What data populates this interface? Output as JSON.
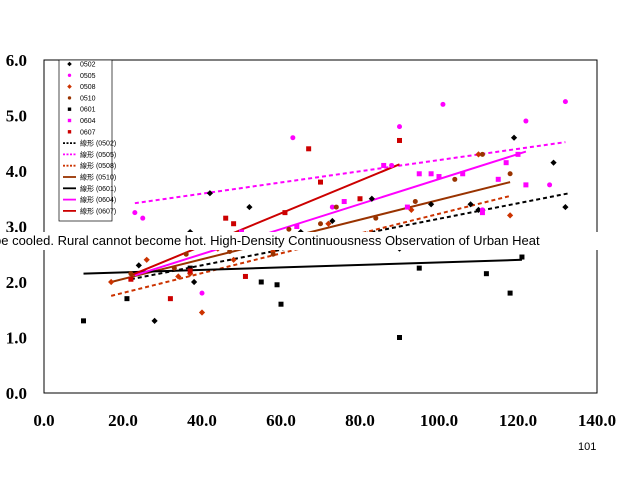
{
  "overlay_text": "be cooled. Rural cannot become hot. High-Density Continuousness Observation of Urban Heat",
  "slide_number": "101",
  "chart_data": {
    "type": "scatter",
    "title": "",
    "xlabel": "",
    "ylabel": "",
    "xlim": [
      0,
      140
    ],
    "ylim": [
      0,
      6
    ],
    "x_ticks": [
      "0.0",
      "20.0",
      "40.0",
      "60.0",
      "80.0",
      "100.0",
      "120.0",
      "140.0"
    ],
    "y_ticks": [
      "0.0",
      "1.0",
      "2.0",
      "3.0",
      "4.0",
      "5.0",
      "6.0"
    ],
    "grid": false,
    "legend": "top-left inside",
    "series": [
      {
        "name": "0502",
        "marker": "diamond",
        "color": "#000000",
        "points": [
          [
            10,
            2.7
          ],
          [
            15,
            2.8
          ],
          [
            24,
            2.3
          ],
          [
            28,
            1.3
          ],
          [
            37,
            2.9
          ],
          [
            38,
            2.0
          ],
          [
            42,
            3.6
          ],
          [
            52,
            3.35
          ],
          [
            65,
            2.9
          ],
          [
            73,
            3.1
          ],
          [
            83,
            3.5
          ],
          [
            90,
            2.6
          ],
          [
            98,
            3.4
          ],
          [
            108,
            3.4
          ],
          [
            110,
            3.3
          ],
          [
            119,
            4.6
          ],
          [
            126,
            2.7
          ],
          [
            128,
            2.65
          ],
          [
            129,
            4.15
          ],
          [
            132,
            3.35
          ]
        ]
      },
      {
        "name": "0505",
        "marker": "circle",
        "color": "#ff00ff",
        "points": [
          [
            23,
            3.25
          ],
          [
            25,
            3.15
          ],
          [
            40,
            1.8
          ],
          [
            63,
            4.6
          ],
          [
            73,
            3.35
          ],
          [
            88,
            4.1
          ],
          [
            90,
            4.8
          ],
          [
            101,
            5.2
          ],
          [
            111,
            3.3
          ],
          [
            122,
            4.9
          ],
          [
            128,
            3.75
          ],
          [
            132,
            5.25
          ]
        ]
      },
      {
        "name": "0508",
        "marker": "diamond",
        "color": "#cc3300",
        "points": [
          [
            17,
            2.0
          ],
          [
            26,
            2.4
          ],
          [
            34,
            2.1
          ],
          [
            37,
            2.15
          ],
          [
            40,
            1.45
          ],
          [
            44,
            2.6
          ],
          [
            48,
            2.4
          ],
          [
            58,
            2.55
          ],
          [
            72,
            3.05
          ],
          [
            85,
            2.85
          ],
          [
            93,
            3.3
          ],
          [
            110,
            4.3
          ],
          [
            118,
            3.2
          ]
        ]
      },
      {
        "name": "0510",
        "marker": "circle",
        "color": "#993300",
        "points": [
          [
            22,
            2.15
          ],
          [
            33,
            2.25
          ],
          [
            36,
            2.5
          ],
          [
            41,
            2.65
          ],
          [
            43,
            2.75
          ],
          [
            47,
            2.55
          ],
          [
            52,
            2.8
          ],
          [
            58,
            2.5
          ],
          [
            62,
            2.95
          ],
          [
            70,
            3.05
          ],
          [
            74,
            3.35
          ],
          [
            84,
            3.15
          ],
          [
            94,
            3.45
          ],
          [
            104,
            3.85
          ],
          [
            111,
            4.3
          ],
          [
            118,
            3.95
          ]
        ]
      },
      {
        "name": "0601",
        "marker": "square",
        "color": "#000000",
        "points": [
          [
            10,
            1.3
          ],
          [
            21,
            1.7
          ],
          [
            37,
            2.25
          ],
          [
            55,
            2.0
          ],
          [
            59,
            1.95
          ],
          [
            60,
            1.6
          ],
          [
            90,
            1.0
          ],
          [
            95,
            2.25
          ],
          [
            112,
            2.15
          ],
          [
            118,
            1.8
          ],
          [
            121,
            2.45
          ]
        ]
      },
      {
        "name": "0604",
        "marker": "square",
        "color": "#ff00ff",
        "points": [
          [
            31,
            2.65
          ],
          [
            38,
            2.7
          ],
          [
            45,
            2.75
          ],
          [
            50,
            2.9
          ],
          [
            64,
            3.0
          ],
          [
            76,
            3.45
          ],
          [
            86,
            4.1
          ],
          [
            92,
            3.35
          ],
          [
            95,
            3.95
          ],
          [
            98,
            3.95
          ],
          [
            100,
            3.9
          ],
          [
            106,
            3.95
          ],
          [
            111,
            3.25
          ],
          [
            115,
            3.85
          ],
          [
            117,
            4.15
          ],
          [
            120,
            4.3
          ],
          [
            122,
            3.75
          ]
        ]
      },
      {
        "name": "0607",
        "marker": "square",
        "color": "#cc0000",
        "points": [
          [
            22,
            2.05
          ],
          [
            32,
            1.7
          ],
          [
            37,
            2.2
          ],
          [
            43,
            2.8
          ],
          [
            46,
            3.15
          ],
          [
            48,
            3.05
          ],
          [
            51,
            2.1
          ],
          [
            61,
            3.25
          ],
          [
            67,
            4.4
          ],
          [
            70,
            3.8
          ],
          [
            80,
            3.5
          ],
          [
            90,
            4.55
          ]
        ]
      },
      {
        "name": "線形 (0502)",
        "type": "trendline",
        "color": "#000000",
        "dash": true,
        "x": [
          22,
          133
        ],
        "y": [
          2.05,
          3.6
        ]
      },
      {
        "name": "線形 (0505)",
        "type": "trendline",
        "color": "#ff00ff",
        "dash": true,
        "x": [
          23,
          132
        ],
        "y": [
          3.42,
          4.52
        ]
      },
      {
        "name": "線形 (0508)",
        "type": "trendline",
        "color": "#cc3300",
        "dash": true,
        "x": [
          17,
          118
        ],
        "y": [
          1.75,
          3.55
        ]
      },
      {
        "name": "線形 (0510)",
        "type": "trendline",
        "color": "#993300",
        "dash": false,
        "x": [
          17,
          118
        ],
        "y": [
          2.0,
          3.8
        ]
      },
      {
        "name": "線形 (0601)",
        "type": "trendline",
        "color": "#000000",
        "dash": false,
        "x": [
          10,
          121
        ],
        "y": [
          2.15,
          2.4
        ]
      },
      {
        "name": "線形 (0604)",
        "type": "trendline",
        "color": "#ff00ff",
        "dash": false,
        "x": [
          23,
          122
        ],
        "y": [
          2.12,
          4.35
        ]
      },
      {
        "name": "線形 (0607)",
        "type": "trendline",
        "color": "#cc0000",
        "dash": false,
        "x": [
          22,
          90
        ],
        "y": [
          2.12,
          4.12
        ]
      }
    ]
  }
}
